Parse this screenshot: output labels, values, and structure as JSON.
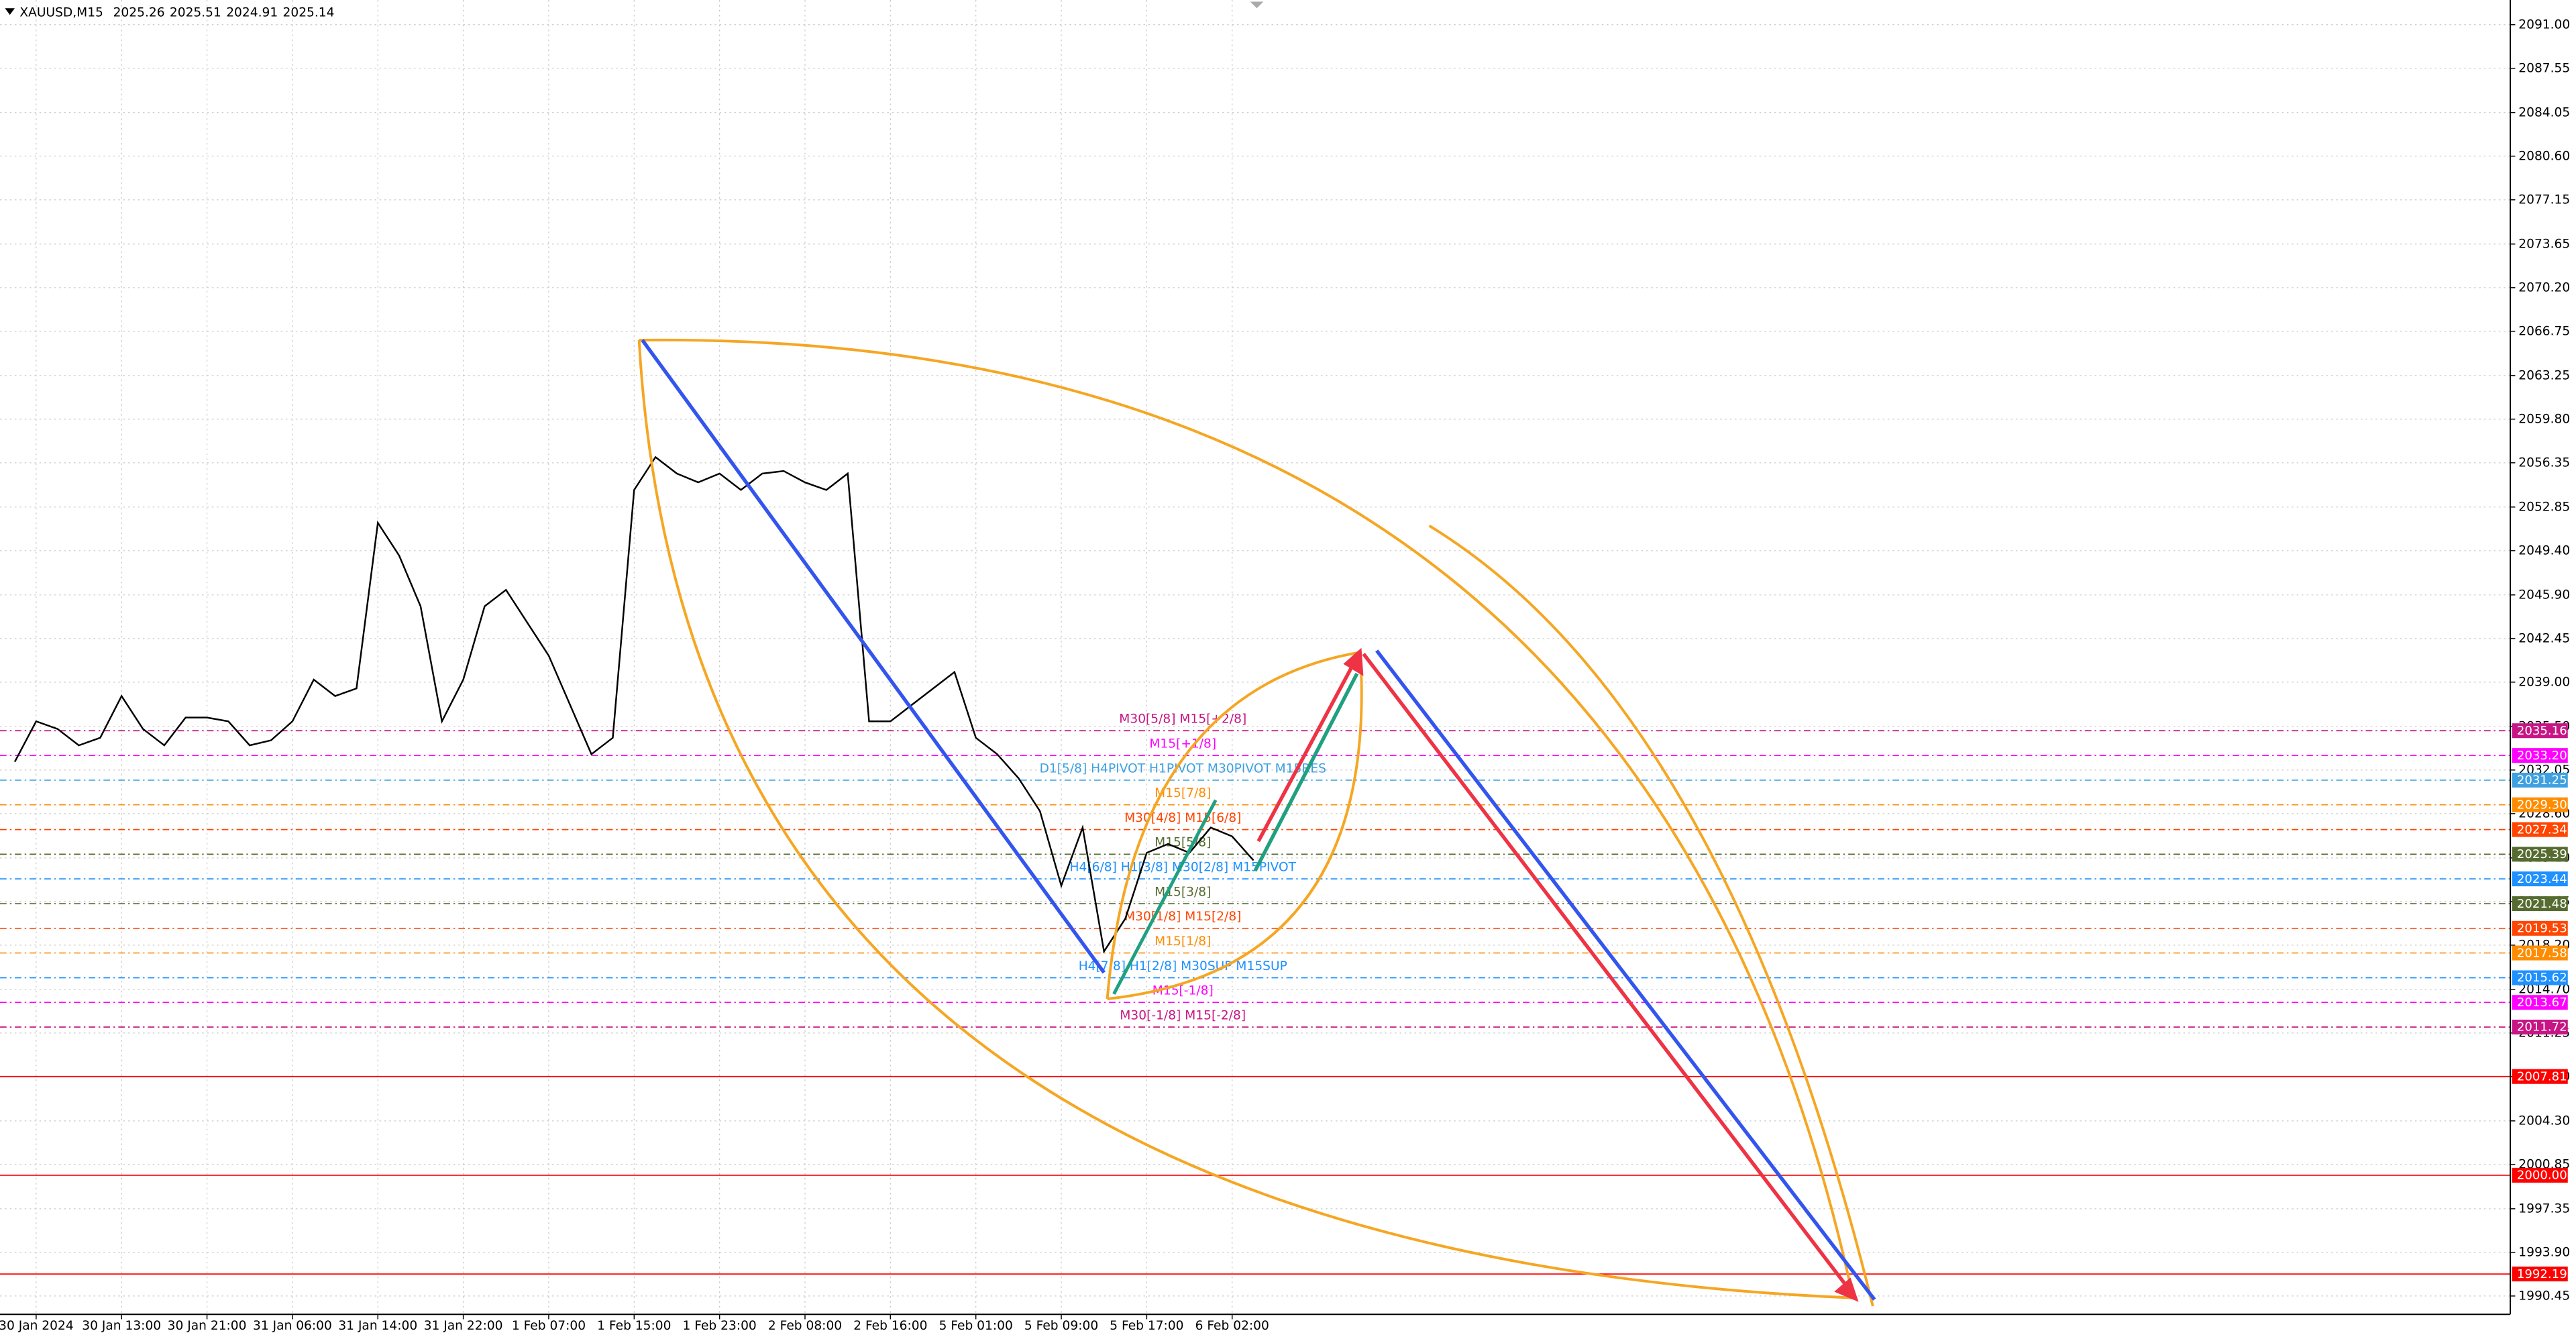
{
  "chart_data": {
    "type": "line",
    "title": "XAUUSD,M15",
    "ohlc": [
      2025.26,
      2025.51,
      2024.91,
      2025.14
    ],
    "categories": [
      null,
      "30 Jan 2024",
      null,
      null,
      null,
      "30 Jan 13:00",
      null,
      null,
      null,
      "30 Jan 21:00",
      null,
      null,
      null,
      "31 Jan 06:00",
      null,
      null,
      null,
      "31 Jan 14:00",
      null,
      null,
      null,
      "31 Jan 22:00",
      null,
      null,
      null,
      "1 Feb 07:00",
      null,
      null,
      null,
      "1 Feb 15:00",
      null,
      null,
      null,
      "1 Feb 23:00",
      null,
      null,
      null,
      "2 Feb 08:00",
      null,
      null,
      null,
      "2 Feb 16:00",
      null,
      null,
      null,
      "5 Feb 01:00",
      null,
      null,
      null,
      "5 Feb 09:00",
      null,
      null,
      null,
      "5 Feb 17:00",
      null,
      null,
      null,
      "6 Feb 02:00",
      null
    ],
    "values": [
      2032.7,
      2035.9,
      2035.3,
      2034.0,
      2034.6,
      2037.9,
      2035.3,
      2034.0,
      2036.2,
      2036.2,
      2035.9,
      2034.0,
      2034.4,
      2035.9,
      2039.2,
      2037.9,
      2038.5,
      2051.6,
      2049.0,
      2045.0,
      2035.9,
      2039.2,
      2045.0,
      2046.3,
      2043.7,
      2041.1,
      2037.2,
      2033.3,
      2034.6,
      2054.2,
      2056.8,
      2055.5,
      2054.8,
      2055.5,
      2054.2,
      2055.5,
      2055.7,
      2054.8,
      2054.2,
      2055.5,
      2035.9,
      2035.9,
      2037.2,
      2038.5,
      2039.8,
      2034.6,
      2033.3,
      2031.4,
      2028.8,
      2022.9,
      2027.5,
      2017.7,
      2020.3,
      2025.5,
      2026.2,
      2025.5,
      2027.5,
      2026.8,
      2024.9
    ],
    "color": "#000000",
    "ylim": [
      1989.0,
      2092.95
    ],
    "yticks": [
      {
        "value": 2091.0,
        "label": "2091.00"
      },
      2087.55,
      2084.05,
      {
        "value": 2080.6,
        "label": "2080.60"
      },
      2077.15,
      2073.65,
      {
        "value": 2070.2,
        "label": "2070.20"
      },
      2066.75,
      2063.25,
      {
        "value": 2059.8,
        "label": "2059.80"
      },
      2056.35,
      2052.85,
      {
        "value": 2049.4,
        "label": "2049.40"
      },
      {
        "value": 2045.9,
        "label": "2045.90"
      },
      2042.45,
      {
        "value": 2039.0,
        "label": "2039.00"
      },
      {
        "value": 2035.5,
        "label": "2035.50"
      },
      2032.05,
      {
        "value": 2028.6,
        "label": "2028.60"
      },
      {
        "value": 2025.1,
        "label": "2025.10"
      },
      2021.65,
      {
        "value": 2018.2,
        "label": "2018.20"
      },
      {
        "value": 2014.7,
        "label": "2014.70"
      },
      2011.25,
      {
        "value": 2007.8,
        "label": "2007.80"
      },
      {
        "value": 2004.3,
        "label": "2004.30"
      },
      2000.85,
      1997.35,
      {
        "value": 1993.9,
        "label": "1993.90"
      },
      1990.45
    ],
    "grid": true,
    "levels": [
      {
        "value": 2035.16,
        "color": "#c71585",
        "note": "M30[5/8] M15[+2/8]"
      },
      {
        "value": 2033.2,
        "label": "2033.20",
        "color": "#ff00ff",
        "note": "M15[+1/8]"
      },
      {
        "value": 2031.25,
        "color": "#3ea0e0",
        "note": "D1[5/8] H4PIVOT H1PIVOT M30PIVOT M15RES"
      },
      {
        "value": 2029.3,
        "label": "2029.30",
        "color": "#ff8c00",
        "note": "M15[7/8]"
      },
      {
        "value": 2027.34,
        "color": "#ff4500",
        "note": "M30[4/8] M15[6/8]"
      },
      {
        "value": 2025.39,
        "color": "#556b2f",
        "note": "M15[5/8]"
      },
      {
        "value": 2023.44,
        "color": "#1e90ff",
        "note": "H4[6/8] H1[3/8] M30[2/8] M15PIVOT"
      },
      {
        "value": 2021.48,
        "color": "#556b2f",
        "note": "M15[3/8]"
      },
      {
        "value": 2019.53,
        "color": "#ff4500",
        "note": "M30[1/8] M15[2/8]"
      },
      {
        "value": 2017.58,
        "color": "#ff8c00",
        "note": "M15[1/8]"
      },
      {
        "value": 2015.62,
        "color": "#1e90ff",
        "note": "H4[7/8] H1[2/8] M30SUP M15SUP"
      },
      {
        "value": 2013.67,
        "color": "#ff00ff",
        "note": "M15[-1/8]"
      },
      {
        "value": 2011.72,
        "color": "#c71585",
        "note": "M30[-1/8] M15[-2/8]"
      },
      {
        "value": 2007.81,
        "color": "#ff0000"
      },
      {
        "value": 2000.0,
        "label": "2000.00",
        "color": "#ff0000"
      },
      {
        "value": 1992.19,
        "color": "#ff0000"
      }
    ]
  }
}
